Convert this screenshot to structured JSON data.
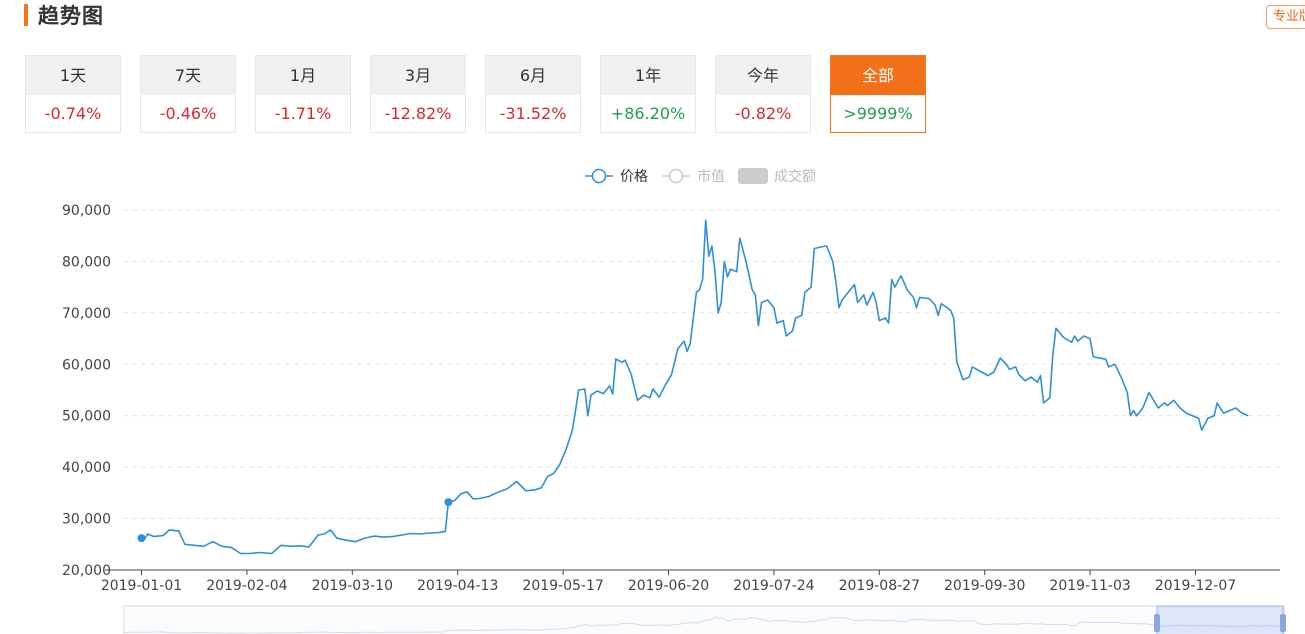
{
  "header": {
    "title": "趋势图",
    "pro_button": "专业版"
  },
  "periods": [
    {
      "label": "1天",
      "change": "-0.74%",
      "color": "#d9282e"
    },
    {
      "label": "7天",
      "change": "-0.46%",
      "color": "#d9282e"
    },
    {
      "label": "1月",
      "change": "-1.71%",
      "color": "#d9282e"
    },
    {
      "label": "3月",
      "change": "-12.82%",
      "color": "#d9282e"
    },
    {
      "label": "6月",
      "change": "-31.52%",
      "color": "#d9282e"
    },
    {
      "label": "1年",
      "change": "+86.20%",
      "color": "#1f9d55"
    },
    {
      "label": "今年",
      "change": "-0.82%",
      "color": "#d9282e"
    },
    {
      "label": "全部",
      "change": ">9999%",
      "color": "#1f9d55",
      "active": true
    }
  ],
  "chart_data": {
    "type": "line",
    "legend": [
      {
        "name": "价格",
        "active": true,
        "color": "#2f8fd8"
      },
      {
        "name": "市值",
        "active": false,
        "color": "#cccccc"
      },
      {
        "name": "成交额",
        "active": false,
        "color": "#cccccc"
      }
    ],
    "ylim": [
      20000,
      90000
    ],
    "y_ticks": [
      "20,000",
      "30,000",
      "40,000",
      "50,000",
      "60,000",
      "70,000",
      "80,000",
      "90,000"
    ],
    "x_ticks": [
      "2019-01-01",
      "2019-02-04",
      "2019-03-10",
      "2019-04-13",
      "2019-05-17",
      "2019-06-20",
      "2019-07-24",
      "2019-08-27",
      "2019-09-30",
      "2019-11-03",
      "2019-12-07"
    ],
    "grid": "horizontal-dashed",
    "series": [
      {
        "name": "价格",
        "color": "#2f8fd8",
        "points": [
          [
            "2019-01-01",
            26200
          ],
          [
            "2019-01-02",
            26000
          ],
          [
            "2019-01-03",
            27000
          ],
          [
            "2019-01-05",
            26500
          ],
          [
            "2019-01-08",
            26700
          ],
          [
            "2019-01-10",
            27800
          ],
          [
            "2019-01-13",
            27600
          ],
          [
            "2019-01-15",
            25000
          ],
          [
            "2019-01-18",
            24800
          ],
          [
            "2019-01-21",
            24600
          ],
          [
            "2019-01-24",
            25500
          ],
          [
            "2019-01-27",
            24600
          ],
          [
            "2019-01-30",
            24400
          ],
          [
            "2019-02-02",
            23200
          ],
          [
            "2019-02-05",
            23200
          ],
          [
            "2019-02-08",
            23400
          ],
          [
            "2019-02-12",
            23200
          ],
          [
            "2019-02-15",
            24800
          ],
          [
            "2019-02-18",
            24600
          ],
          [
            "2019-02-21",
            24700
          ],
          [
            "2019-02-24",
            24500
          ],
          [
            "2019-02-27",
            26800
          ],
          [
            "2019-03-01",
            27000
          ],
          [
            "2019-03-03",
            27800
          ],
          [
            "2019-03-05",
            26200
          ],
          [
            "2019-03-08",
            25800
          ],
          [
            "2019-03-11",
            25500
          ],
          [
            "2019-03-14",
            26200
          ],
          [
            "2019-03-17",
            26600
          ],
          [
            "2019-03-20",
            26400
          ],
          [
            "2019-03-23",
            26500
          ],
          [
            "2019-03-26",
            26800
          ],
          [
            "2019-03-29",
            27100
          ],
          [
            "2019-04-01",
            27000
          ],
          [
            "2019-04-04",
            27200
          ],
          [
            "2019-04-07",
            27300
          ],
          [
            "2019-04-09",
            27500
          ],
          [
            "2019-04-10",
            33200
          ],
          [
            "2019-04-12",
            33500
          ],
          [
            "2019-04-14",
            34800
          ],
          [
            "2019-04-16",
            35200
          ],
          [
            "2019-04-18",
            33800
          ],
          [
            "2019-04-20",
            33900
          ],
          [
            "2019-04-23",
            34300
          ],
          [
            "2019-04-26",
            35100
          ],
          [
            "2019-04-29",
            35800
          ],
          [
            "2019-05-02",
            37200
          ],
          [
            "2019-05-05",
            35400
          ],
          [
            "2019-05-08",
            35600
          ],
          [
            "2019-05-10",
            36000
          ],
          [
            "2019-05-12",
            38200
          ],
          [
            "2019-05-14",
            38800
          ],
          [
            "2019-05-16",
            40600
          ],
          [
            "2019-05-18",
            43500
          ],
          [
            "2019-05-20",
            47200
          ],
          [
            "2019-05-21",
            51000
          ],
          [
            "2019-05-22",
            55000
          ],
          [
            "2019-05-24",
            55200
          ],
          [
            "2019-05-25",
            50000
          ],
          [
            "2019-05-26",
            54000
          ],
          [
            "2019-05-28",
            54800
          ],
          [
            "2019-05-30",
            54300
          ],
          [
            "2019-06-01",
            55800
          ],
          [
            "2019-06-02",
            54200
          ],
          [
            "2019-06-03",
            61000
          ],
          [
            "2019-06-05",
            60400
          ],
          [
            "2019-06-06",
            60800
          ],
          [
            "2019-06-08",
            58000
          ],
          [
            "2019-06-10",
            53000
          ],
          [
            "2019-06-12",
            54000
          ],
          [
            "2019-06-14",
            53500
          ],
          [
            "2019-06-15",
            55200
          ],
          [
            "2019-06-17",
            53600
          ],
          [
            "2019-06-19",
            56000
          ],
          [
            "2019-06-21",
            58000
          ],
          [
            "2019-06-23",
            63000
          ],
          [
            "2019-06-25",
            64500
          ],
          [
            "2019-06-26",
            62500
          ],
          [
            "2019-06-27",
            64000
          ],
          [
            "2019-06-29",
            74000
          ],
          [
            "2019-06-30",
            74500
          ],
          [
            "2019-07-01",
            76500
          ],
          [
            "2019-07-02",
            88000
          ],
          [
            "2019-07-03",
            81000
          ],
          [
            "2019-07-04",
            83000
          ],
          [
            "2019-07-05",
            78000
          ],
          [
            "2019-07-06",
            70000
          ],
          [
            "2019-07-07",
            72000
          ],
          [
            "2019-07-08",
            80000
          ],
          [
            "2019-07-09",
            77000
          ],
          [
            "2019-07-10",
            78500
          ],
          [
            "2019-07-12",
            78000
          ],
          [
            "2019-07-13",
            84500
          ],
          [
            "2019-07-15",
            80000
          ],
          [
            "2019-07-17",
            74500
          ],
          [
            "2019-07-18",
            73500
          ],
          [
            "2019-07-19",
            67500
          ],
          [
            "2019-07-20",
            72000
          ],
          [
            "2019-07-22",
            72500
          ],
          [
            "2019-07-24",
            71000
          ],
          [
            "2019-07-25",
            68000
          ],
          [
            "2019-07-27",
            68500
          ],
          [
            "2019-07-28",
            65500
          ],
          [
            "2019-07-30",
            66500
          ],
          [
            "2019-07-31",
            69000
          ],
          [
            "2019-08-02",
            69500
          ],
          [
            "2019-08-03",
            74000
          ],
          [
            "2019-08-05",
            75000
          ],
          [
            "2019-08-06",
            82500
          ],
          [
            "2019-08-08",
            82800
          ],
          [
            "2019-08-10",
            83000
          ],
          [
            "2019-08-12",
            80000
          ],
          [
            "2019-08-13",
            76000
          ],
          [
            "2019-08-14",
            71000
          ],
          [
            "2019-08-15",
            72500
          ],
          [
            "2019-08-17",
            74000
          ],
          [
            "2019-08-19",
            75500
          ],
          [
            "2019-08-20",
            72000
          ],
          [
            "2019-08-22",
            73500
          ],
          [
            "2019-08-23",
            71500
          ],
          [
            "2019-08-25",
            74000
          ],
          [
            "2019-08-26",
            72000
          ],
          [
            "2019-08-27",
            68500
          ],
          [
            "2019-08-29",
            69000
          ],
          [
            "2019-08-30",
            68000
          ],
          [
            "2019-08-31",
            76500
          ],
          [
            "2019-09-01",
            75000
          ],
          [
            "2019-09-03",
            77200
          ],
          [
            "2019-09-05",
            74500
          ],
          [
            "2019-09-07",
            73000
          ],
          [
            "2019-09-08",
            71000
          ],
          [
            "2019-09-09",
            73000
          ],
          [
            "2019-09-12",
            72800
          ],
          [
            "2019-09-14",
            71500
          ],
          [
            "2019-09-15",
            69500
          ],
          [
            "2019-09-16",
            71800
          ],
          [
            "2019-09-19",
            70500
          ],
          [
            "2019-09-20",
            69000
          ],
          [
            "2019-09-21",
            60500
          ],
          [
            "2019-09-23",
            57000
          ],
          [
            "2019-09-25",
            57500
          ],
          [
            "2019-09-26",
            59500
          ],
          [
            "2019-09-29",
            58500
          ],
          [
            "2019-10-01",
            57800
          ],
          [
            "2019-10-03",
            58500
          ],
          [
            "2019-10-05",
            61200
          ],
          [
            "2019-10-07",
            60000
          ],
          [
            "2019-10-08",
            59000
          ],
          [
            "2019-10-10",
            59500
          ],
          [
            "2019-10-11",
            58000
          ],
          [
            "2019-10-13",
            56800
          ],
          [
            "2019-10-15",
            57500
          ],
          [
            "2019-10-17",
            56500
          ],
          [
            "2019-10-18",
            57800
          ],
          [
            "2019-10-19",
            52500
          ],
          [
            "2019-10-21",
            53500
          ],
          [
            "2019-10-22",
            62000
          ],
          [
            "2019-10-23",
            67000
          ],
          [
            "2019-10-25",
            65500
          ],
          [
            "2019-10-26",
            65000
          ],
          [
            "2019-10-28",
            64300
          ],
          [
            "2019-10-29",
            65500
          ],
          [
            "2019-10-30",
            64500
          ],
          [
            "2019-11-01",
            65500
          ],
          [
            "2019-11-03",
            65000
          ],
          [
            "2019-11-04",
            61500
          ],
          [
            "2019-11-06",
            61200
          ],
          [
            "2019-11-08",
            61000
          ],
          [
            "2019-11-09",
            59500
          ],
          [
            "2019-11-11",
            60000
          ],
          [
            "2019-11-13",
            57500
          ],
          [
            "2019-11-15",
            54500
          ],
          [
            "2019-11-16",
            50000
          ],
          [
            "2019-11-17",
            51000
          ],
          [
            "2019-11-18",
            50000
          ],
          [
            "2019-11-20",
            51500
          ],
          [
            "2019-11-21",
            53000
          ],
          [
            "2019-11-22",
            54500
          ],
          [
            "2019-11-24",
            52500
          ],
          [
            "2019-11-25",
            51500
          ],
          [
            "2019-11-27",
            52500
          ],
          [
            "2019-11-28",
            52000
          ],
          [
            "2019-11-30",
            53000
          ],
          [
            "2019-12-02",
            51500
          ],
          [
            "2019-12-04",
            50500
          ],
          [
            "2019-12-06",
            50000
          ],
          [
            "2019-12-08",
            49500
          ],
          [
            "2019-12-09",
            47200
          ],
          [
            "2019-12-11",
            49500
          ],
          [
            "2019-12-13",
            50000
          ],
          [
            "2019-12-14",
            52500
          ],
          [
            "2019-12-16",
            50500
          ],
          [
            "2019-12-18",
            51000
          ],
          [
            "2019-12-20",
            51500
          ],
          [
            "2019-12-22",
            50500
          ],
          [
            "2019-12-24",
            50000
          ]
        ],
        "markers": [
          [
            "2019-01-01",
            26200
          ],
          [
            "2019-04-10",
            33200
          ]
        ]
      }
    ]
  }
}
